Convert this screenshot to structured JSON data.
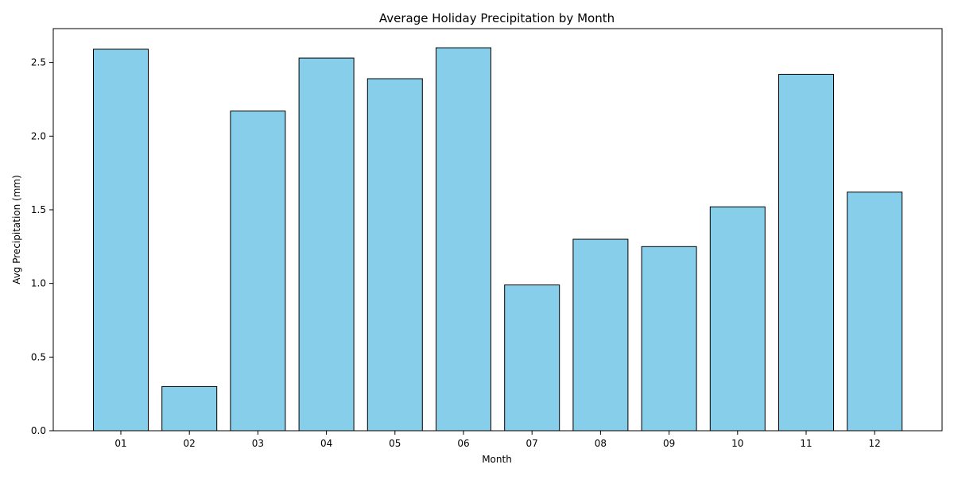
{
  "chart_data": {
    "type": "bar",
    "title": "Average Holiday Precipitation by Month",
    "xlabel": "Month",
    "ylabel": "Avg Precipitation (mm)",
    "categories": [
      "01",
      "02",
      "03",
      "04",
      "05",
      "06",
      "07",
      "08",
      "09",
      "10",
      "11",
      "12"
    ],
    "values": [
      2.59,
      0.3,
      2.17,
      2.53,
      2.39,
      2.6,
      0.99,
      1.3,
      1.25,
      1.52,
      2.42,
      1.62
    ],
    "ylim": [
      0,
      2.73
    ],
    "yticks": [
      "0.0",
      "0.5",
      "1.0",
      "1.5",
      "2.0",
      "2.5"
    ],
    "grid": false,
    "bar_color": "#87CEEB",
    "edge_color": "#000000"
  }
}
